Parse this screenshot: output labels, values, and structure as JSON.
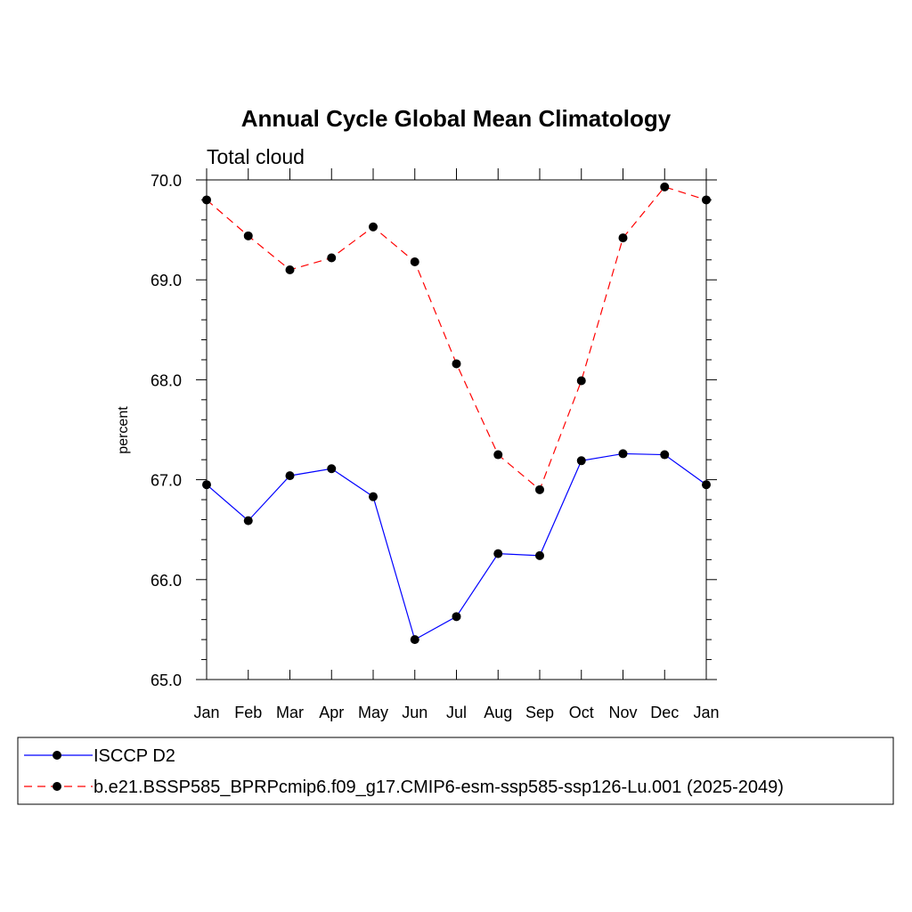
{
  "chart_data": {
    "type": "line",
    "title": "Annual Cycle Global Mean Climatology",
    "subtitle": "Total cloud",
    "xlabel": "",
    "ylabel": "percent",
    "categories": [
      "Jan",
      "Feb",
      "Mar",
      "Apr",
      "May",
      "Jun",
      "Jul",
      "Aug",
      "Sep",
      "Oct",
      "Nov",
      "Dec",
      "Jan"
    ],
    "ylim": [
      65.0,
      70.0
    ],
    "yticks": [
      "65.0",
      "66.0",
      "67.0",
      "68.0",
      "69.0",
      "70.0"
    ],
    "grid": false,
    "legend_position": "bottom",
    "series": [
      {
        "name": "ISCCP D2",
        "color": "#0000ff",
        "line_style": "solid",
        "marker": "filled-circle",
        "values": [
          66.95,
          66.59,
          67.04,
          67.11,
          66.83,
          65.4,
          65.63,
          66.26,
          66.24,
          67.19,
          67.26,
          67.25,
          66.95
        ]
      },
      {
        "name": "b.e21.BSSP585_BPRPcmip6.f09_g17.CMIP6-esm-ssp585-ssp126-Lu.001 (2025-2049)",
        "color": "#ff0000",
        "line_style": "dashed",
        "marker": "filled-circle",
        "values": [
          69.8,
          69.44,
          69.1,
          69.22,
          69.53,
          69.18,
          68.16,
          67.25,
          66.9,
          67.99,
          69.42,
          69.93,
          69.8
        ]
      }
    ]
  }
}
